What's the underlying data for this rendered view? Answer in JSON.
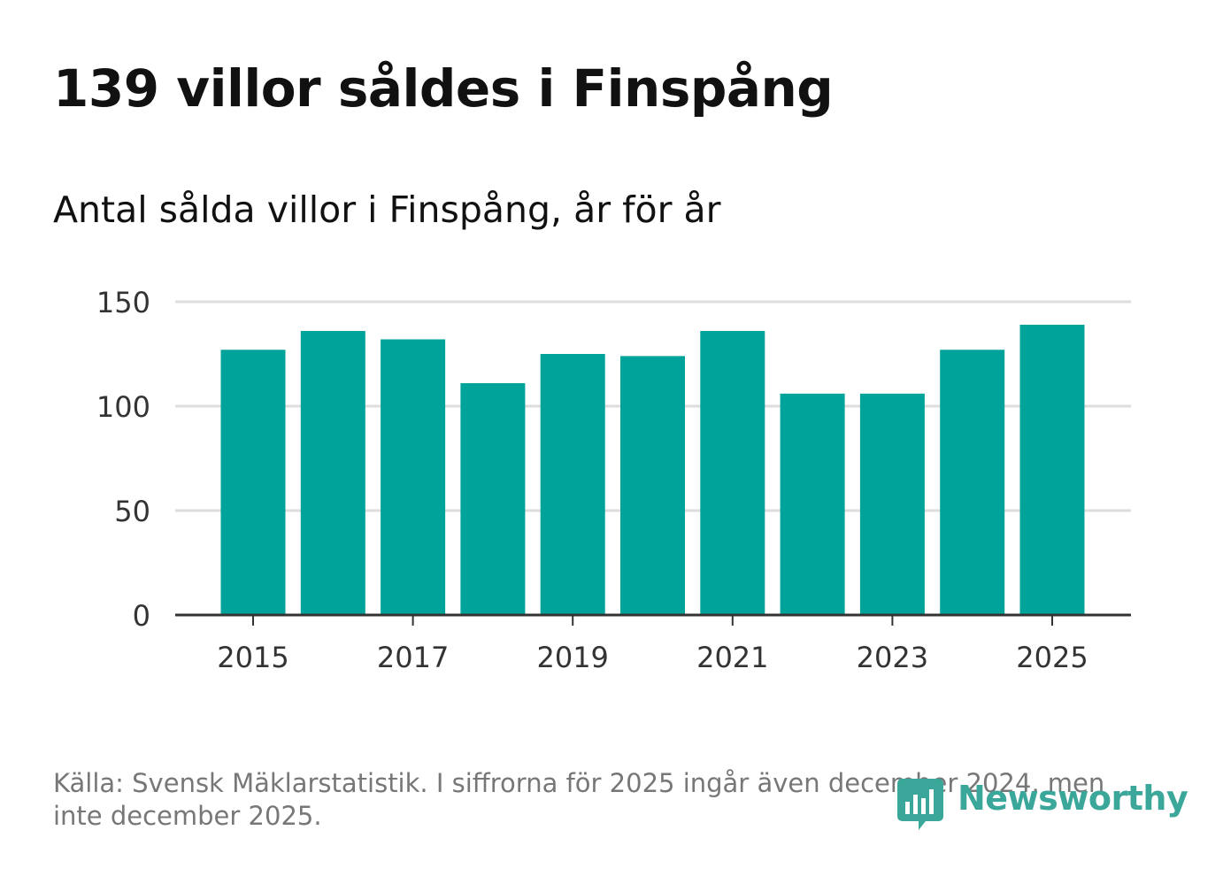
{
  "title": "139 villor såldes i Finspång",
  "subtitle": "Antal sålda villor i Finspång, år för år",
  "source": "Källa: Svensk Mäklarstatistik. I siffrorna för 2025 ingår även december 2024, men inte december 2025.",
  "logo": {
    "text": "Newsworthy",
    "icon": "newsworthy-logo-icon"
  },
  "colors": {
    "bar": "#00a39a",
    "grid": "#dddddd",
    "axis": "#333333",
    "logo": "#3aa79a"
  },
  "chart_data": {
    "type": "bar",
    "title": "Antal sålda villor i Finspång, år för år",
    "categories": [
      "2015",
      "2016",
      "2017",
      "2018",
      "2019",
      "2020",
      "2021",
      "2022",
      "2023",
      "2024",
      "2025"
    ],
    "values": [
      127,
      136,
      132,
      111,
      125,
      124,
      136,
      106,
      106,
      127,
      139
    ],
    "xticks": [
      "2015",
      "2017",
      "2019",
      "2021",
      "2023",
      "2025"
    ],
    "yticks": [
      0,
      50,
      100,
      150
    ],
    "ylim": [
      0,
      150
    ],
    "xlabel": "",
    "ylabel": "",
    "grid": true
  }
}
